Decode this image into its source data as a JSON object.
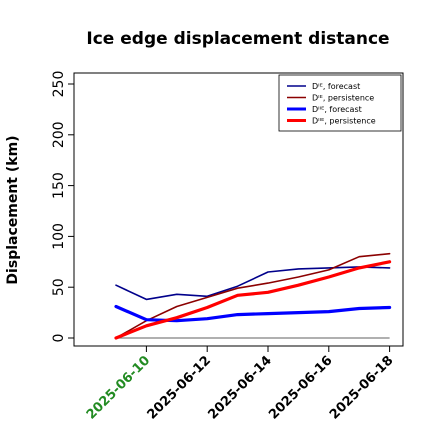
{
  "chart_data": {
    "type": "line",
    "title": "Ice edge displacement distance",
    "ylabel": "Displacement (km)",
    "xlabel": "",
    "ylim": [
      0,
      250
    ],
    "yticks": [
      0,
      50,
      100,
      150,
      200,
      250
    ],
    "x": [
      "2025-06-09",
      "2025-06-10",
      "2025-06-11",
      "2025-06-12",
      "2025-06-13",
      "2025-06-14",
      "2025-06-15",
      "2025-06-16",
      "2025-06-17",
      "2025-06-18"
    ],
    "xticks": [
      {
        "label": "2025-06-10",
        "color": "#228b22"
      },
      {
        "label": "2025-06-12",
        "color": "#000000"
      },
      {
        "label": "2025-06-14",
        "color": "#000000"
      },
      {
        "label": "2025-06-16",
        "color": "#000000"
      },
      {
        "label": "2025-06-18",
        "color": "#000000"
      }
    ],
    "reference_line": {
      "y": 0,
      "color": "#808080"
    },
    "grid": false,
    "legend_position": "top-right",
    "series": [
      {
        "name": "Dᴵᴱ, forecast",
        "color": "#00008b",
        "style": "thin",
        "values": [
          52,
          38,
          43,
          41,
          51,
          65,
          68,
          69,
          70,
          69
        ]
      },
      {
        "name": "Dᴵᴱ, persistence",
        "color": "#8b0000",
        "style": "thin",
        "values": [
          0,
          17,
          31,
          40,
          49,
          54,
          60,
          67,
          80,
          83
        ]
      },
      {
        "name": "Dᴵᴵᴱ, forecast",
        "color": "#0000ff",
        "style": "thick",
        "values": [
          31,
          18,
          17,
          19,
          23,
          24,
          25,
          26,
          29,
          30
        ]
      },
      {
        "name": "Dᴵᴵᴱ, persistence",
        "color": "#ff0000",
        "style": "thick",
        "values": [
          0,
          12,
          20,
          30,
          42,
          45,
          52,
          60,
          69,
          75
        ]
      }
    ]
  }
}
